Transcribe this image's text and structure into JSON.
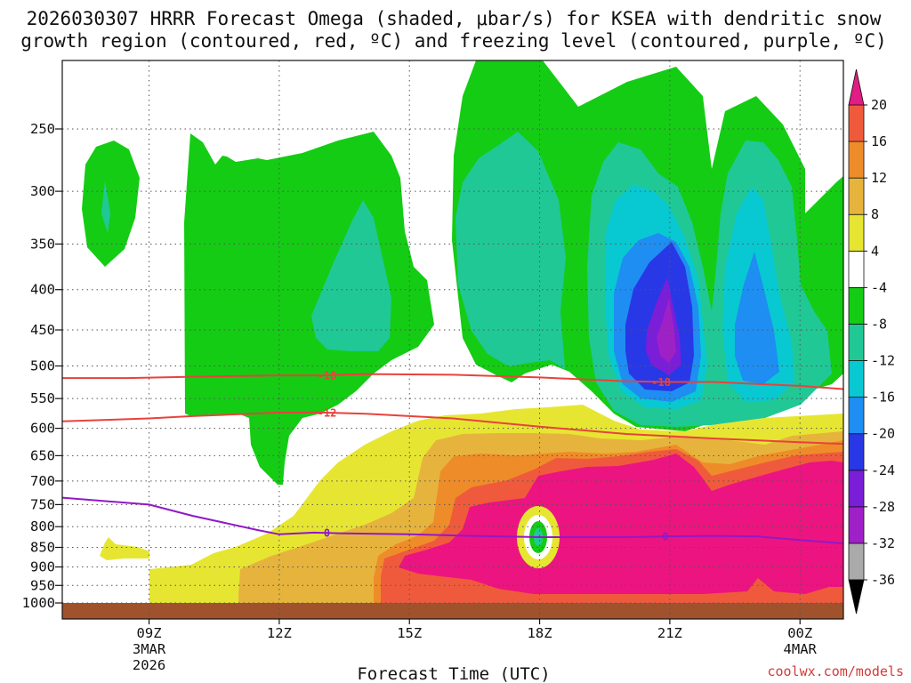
{
  "title": {
    "line1": "2026030307 HRRR Forecast Omega (shaded, μbar/s) for KSEA with dendritic snow",
    "line2": "growth region (contoured, red, ºC) and freezing level (contoured, purple, ºC)"
  },
  "credit": "coolwx.com/models",
  "chart_data": {
    "type": "time-height cross section (filled contour)",
    "title": "2026030307 HRRR Forecast Omega (shaded, μbar/s) for KSEA with dendritic snow growth region (contoured, red, ºC) and freezing level (contoured, purple, ºC)",
    "xlabel": "Forecast Time (UTC)",
    "ylabel": "",
    "x_range_hours": [
      7,
      25
    ],
    "y_range_mb": [
      1000,
      200
    ],
    "y_scale": "log-pressure (inverted)",
    "x_ticks": [
      {
        "hour": 9,
        "label": "09Z",
        "sub1": "3MAR",
        "sub2": "2026"
      },
      {
        "hour": 12,
        "label": "12Z",
        "sub1": "",
        "sub2": ""
      },
      {
        "hour": 15,
        "label": "15Z",
        "sub1": "",
        "sub2": ""
      },
      {
        "hour": 18,
        "label": "18Z",
        "sub1": "",
        "sub2": ""
      },
      {
        "hour": 21,
        "label": "21Z",
        "sub1": "",
        "sub2": ""
      },
      {
        "hour": 24,
        "label": "00Z",
        "sub1": "4MAR",
        "sub2": ""
      }
    ],
    "y_ticks": [
      250,
      300,
      350,
      400,
      450,
      500,
      550,
      600,
      650,
      700,
      750,
      800,
      850,
      900,
      950,
      1000
    ],
    "colorbar": {
      "levels": [
        -36,
        -32,
        -28,
        -24,
        -20,
        -16,
        -12,
        -8,
        -4,
        4,
        8,
        12,
        16,
        20
      ],
      "colors": [
        "#aaaaaa",
        "#a020c8",
        "#7a1ed8",
        "#2838e6",
        "#1e8ef2",
        "#08c8d2",
        "#20c896",
        "#14cc14",
        "#ffffff",
        "#e6e632",
        "#e6b43c",
        "#ee8c2a",
        "#f05a3c",
        "#ec1480"
      ],
      "under_color": "#000000",
      "over_color": "#e21c84",
      "tick_labels": [
        "20",
        "16",
        "12",
        "8",
        "4",
        "-4",
        "-8",
        "-12",
        "-16",
        "-20",
        "-24",
        "-28",
        "-32",
        "-36"
      ]
    },
    "contours": {
      "dendritic": {
        "color": "#e8423c",
        "lines": [
          {
            "label": "-18",
            "points": [
              [
                7,
                518
              ],
              [
                8.5,
                518
              ],
              [
                10,
                516
              ],
              [
                12,
                514
              ],
              [
                13,
                514
              ],
              [
                14,
                512
              ],
              [
                16,
                513
              ],
              [
                18,
                517
              ],
              [
                20,
                523
              ],
              [
                21,
                524
              ],
              [
                22,
                524
              ],
              [
                24,
                530
              ],
              [
                25,
                535
              ]
            ]
          },
          {
            "label": "-12",
            "points": [
              [
                7,
                588
              ],
              [
                9,
                583
              ],
              [
                10,
                579
              ],
              [
                12,
                573
              ],
              [
                13,
                573
              ],
              [
                14,
                575
              ],
              [
                16,
                583
              ],
              [
                18,
                597
              ],
              [
                20,
                610
              ],
              [
                22,
                618
              ],
              [
                24,
                625
              ],
              [
                25,
                628
              ]
            ]
          }
        ],
        "label_positions": [
          [
            13.1,
            514
          ],
          [
            20.8,
            524
          ],
          [
            13.1,
            573
          ]
        ]
      },
      "freezing_level": {
        "color": "#9218c8",
        "label": "0",
        "points": [
          [
            7,
            735
          ],
          [
            9,
            750
          ],
          [
            10,
            775
          ],
          [
            11.5,
            808
          ],
          [
            12,
            818
          ],
          [
            12.8,
            814
          ],
          [
            13.5,
            816
          ],
          [
            15,
            818
          ],
          [
            16.5,
            822
          ],
          [
            18,
            825
          ],
          [
            19,
            825
          ],
          [
            20,
            825
          ],
          [
            21,
            823
          ],
          [
            22,
            822
          ],
          [
            23,
            823
          ],
          [
            24,
            832
          ],
          [
            25,
            840
          ]
        ],
        "label_positions": [
          [
            13.1,
            814
          ],
          [
            20.9,
            823
          ]
        ]
      }
    },
    "omega_regions": [
      {
        "level": "-8 to -4",
        "description": "upward motion, green, mid levels 250-600 mb"
      },
      {
        "level": "-32 to -28",
        "description": "strongest upward motion near 21Z around 400-480 mb"
      },
      {
        "level": ">20",
        "description": "strong downward motion, magenta, 650-950 mb after 16Z"
      }
    ],
    "ground": {
      "below_mb": 1000,
      "color": "#a0522d"
    }
  }
}
